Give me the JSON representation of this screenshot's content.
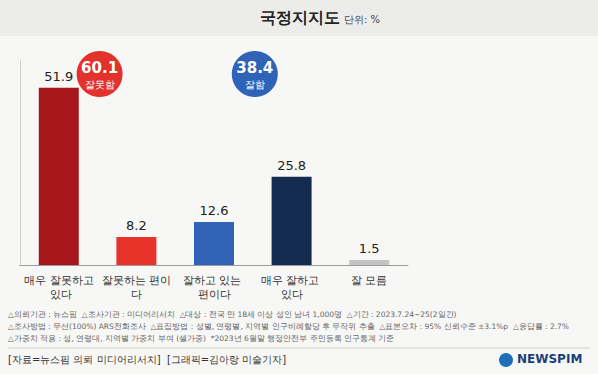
{
  "chart_data": {
    "type": "bar",
    "title": "국정지지도",
    "subtitle": "단위: %",
    "categories": [
      "매우 잘못하고 있다",
      "잘못하는 편이다",
      "잘하고 있는 편이다",
      "매우 잘하고 있다",
      "잘 모름"
    ],
    "values": [
      51.9,
      8.2,
      12.6,
      25.8,
      1.5
    ],
    "colors": [
      "#a5171b",
      "#e8332a",
      "#3062b5",
      "#152c50",
      "#c4c4c4"
    ],
    "ylim": [
      0,
      60
    ],
    "grid": false,
    "data_labels": true,
    "tick_labels": "x",
    "annotations": [
      {
        "value": 60.1,
        "label": "잘못함",
        "color": "#e3312b"
      },
      {
        "value": 38.4,
        "label": "잘함",
        "color": "#2f63b8"
      }
    ],
    "notes": [
      "△의뢰기관 : 뉴스핌  △조사기관 : 미디어리서치  △대상 : 전국 만 18세 이상 성인 남녀 1,000명  △기간 : 2023.7.24~25(2일간)",
      "△조사방법 : 무선(100%) ARS전화조사  △표집방법 : 성별, 연령별, 지역별 인구비례할당 후 무작위 추출  △표본오차 : 95% 신뢰수준 ±3.1%p  △응답률 : 2.7%",
      "△가중치 적용 : 성, 연령대, 지역별 가중치 부여 (셀가중)  *2023년 6월말 행정안전부 주민등록 인구통계 기준"
    ],
    "source": "[자료=뉴스핌 의뢰 미디어리서치]  [그래픽=김아랑 미술기자]",
    "logo": "NEWSPIM"
  }
}
